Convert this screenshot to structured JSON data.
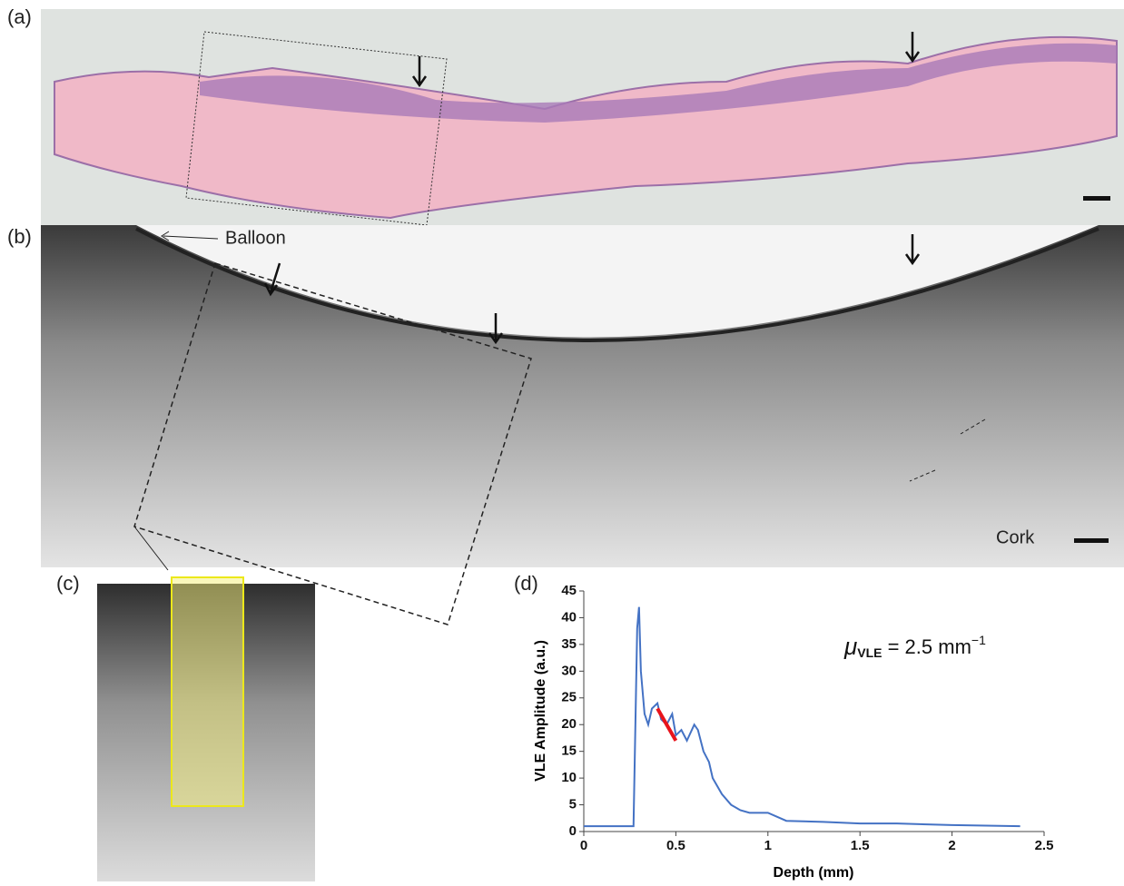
{
  "panels": {
    "a": "(a)",
    "b": "(b)",
    "c": "(c)",
    "d": "(d)"
  },
  "annotations": {
    "balloon": "Balloon",
    "cork": "Cork"
  },
  "chart_data": {
    "type": "line",
    "note_parts": {
      "symbol": "μ",
      "subscript": "VLE",
      "text": " = 2.5 mm",
      "superscript": "−1"
    },
    "x_label": "Depth (mm)",
    "y_label": "VLE Amplitude (a.u.)",
    "xlim": [
      0,
      2.5
    ],
    "ylim": [
      0,
      45
    ],
    "xticks": [
      0,
      0.5,
      1,
      1.5,
      2,
      2.5
    ],
    "yticks": [
      0,
      5,
      10,
      15,
      20,
      25,
      30,
      35,
      40,
      45
    ],
    "series": [
      {
        "color": "#4472c4",
        "x": [
          0,
          0.27,
          0.29,
          0.3,
          0.31,
          0.33,
          0.35,
          0.37,
          0.4,
          0.42,
          0.45,
          0.48,
          0.5,
          0.53,
          0.56,
          0.6,
          0.62,
          0.65,
          0.68,
          0.7,
          0.75,
          0.8,
          0.85,
          0.9,
          1.0,
          1.1,
          1.3,
          1.5,
          1.7,
          2.0,
          2.37
        ],
        "values": [
          1,
          1,
          38,
          42,
          30,
          22,
          20,
          23,
          24,
          21,
          20,
          22,
          18,
          19,
          17,
          20,
          19,
          15,
          13,
          10,
          7,
          5,
          4,
          3.5,
          3.5,
          2,
          1.8,
          1.5,
          1.5,
          1.2,
          1
        ]
      },
      {
        "color": "#e8141c",
        "x": [
          0.4,
          0.5
        ],
        "values": [
          23,
          17
        ]
      }
    ]
  }
}
